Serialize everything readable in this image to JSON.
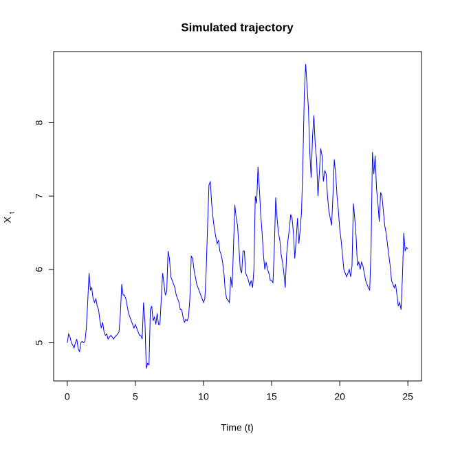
{
  "chart_data": {
    "type": "line",
    "title": "Simulated trajectory",
    "x_label": "Time (t)",
    "y_label": "X",
    "y_label_subscript": "t",
    "xlim": [
      -1,
      26
    ],
    "ylim": [
      4.48,
      8.97
    ],
    "xticks": [
      0,
      5,
      10,
      15,
      20,
      25
    ],
    "yticks": [
      5,
      6,
      7,
      8
    ],
    "grid": false,
    "x": [
      0,
      0.1,
      0.2,
      0.3,
      0.4,
      0.5,
      0.6,
      0.7,
      0.8,
      0.9,
      1,
      1.1,
      1.2,
      1.3,
      1.4,
      1.5,
      1.6,
      1.7,
      1.8,
      1.9,
      2,
      2.1,
      2.2,
      2.3,
      2.4,
      2.5,
      2.6,
      2.7,
      2.8,
      2.9,
      3,
      3.1,
      3.2,
      3.3,
      3.4,
      3.5,
      3.6,
      3.7,
      3.8,
      3.9,
      4,
      4.1,
      4.2,
      4.3,
      4.4,
      4.5,
      4.6,
      4.7,
      4.8,
      4.9,
      5,
      5.1,
      5.2,
      5.3,
      5.4,
      5.5,
      5.6,
      5.7,
      5.8,
      5.9,
      6,
      6.1,
      6.2,
      6.3,
      6.4,
      6.5,
      6.6,
      6.7,
      6.8,
      6.9,
      7,
      7.1,
      7.2,
      7.3,
      7.4,
      7.5,
      7.6,
      7.7,
      7.8,
      7.9,
      8,
      8.1,
      8.2,
      8.3,
      8.4,
      8.5,
      8.6,
      8.7,
      8.8,
      8.9,
      9,
      9.1,
      9.2,
      9.3,
      9.4,
      9.5,
      9.6,
      9.7,
      9.8,
      9.9,
      10,
      10.1,
      10.2,
      10.3,
      10.4,
      10.5,
      10.6,
      10.7,
      10.8,
      10.9,
      11,
      11.1,
      11.2,
      11.3,
      11.4,
      11.5,
      11.6,
      11.7,
      11.8,
      11.9,
      12,
      12.1,
      12.2,
      12.3,
      12.4,
      12.5,
      12.6,
      12.7,
      12.8,
      12.9,
      13,
      13.1,
      13.2,
      13.3,
      13.4,
      13.5,
      13.6,
      13.7,
      13.8,
      13.9,
      14,
      14.1,
      14.2,
      14.3,
      14.4,
      14.5,
      14.6,
      14.7,
      14.8,
      14.9,
      15,
      15.1,
      15.2,
      15.3,
      15.4,
      15.5,
      15.6,
      15.7,
      15.8,
      15.9,
      16,
      16.1,
      16.2,
      16.3,
      16.4,
      16.5,
      16.6,
      16.7,
      16.8,
      16.9,
      17,
      17.1,
      17.2,
      17.3,
      17.4,
      17.5,
      17.6,
      17.7,
      17.8,
      17.9,
      18,
      18.1,
      18.2,
      18.3,
      18.4,
      18.5,
      18.6,
      18.7,
      18.8,
      18.9,
      19,
      19.1,
      19.2,
      19.3,
      19.4,
      19.5,
      19.6,
      19.7,
      19.8,
      19.9,
      20,
      20.1,
      20.2,
      20.3,
      20.4,
      20.5,
      20.6,
      20.7,
      20.8,
      20.9,
      21,
      21.1,
      21.2,
      21.3,
      21.4,
      21.5,
      21.6,
      21.7,
      21.8,
      21.9,
      22,
      22.1,
      22.2,
      22.3,
      22.4,
      22.5,
      22.6,
      22.7,
      22.8,
      22.9,
      23,
      23.1,
      23.2,
      23.3,
      23.4,
      23.5,
      23.6,
      23.7,
      23.8,
      23.9,
      24,
      24.1,
      24.2,
      24.3,
      24.4,
      24.5,
      24.6,
      24.7,
      24.8,
      24.9,
      25
    ],
    "series": [
      {
        "color": "#0000ff",
        "values": [
          5.0,
          5.12,
          5.08,
          5.0,
          4.97,
          4.93,
          5.0,
          5.05,
          4.92,
          4.88,
          5.0,
          5.02,
          5.0,
          5.02,
          5.2,
          5.55,
          5.95,
          5.72,
          5.75,
          5.6,
          5.55,
          5.6,
          5.5,
          5.45,
          5.3,
          5.2,
          5.28,
          5.15,
          5.1,
          5.12,
          5.05,
          5.08,
          5.1,
          5.08,
          5.05,
          5.08,
          5.1,
          5.12,
          5.15,
          5.4,
          5.8,
          5.65,
          5.65,
          5.6,
          5.5,
          5.4,
          5.35,
          5.3,
          5.25,
          5.2,
          5.25,
          5.2,
          5.15,
          5.1,
          5.1,
          5.05,
          5.55,
          5.3,
          4.65,
          4.72,
          4.7,
          5.45,
          5.5,
          5.3,
          5.35,
          5.25,
          5.4,
          5.25,
          5.25,
          5.6,
          5.95,
          5.8,
          5.65,
          5.7,
          6.25,
          6.15,
          5.9,
          5.85,
          5.8,
          5.75,
          5.65,
          5.6,
          5.55,
          5.45,
          5.45,
          5.35,
          5.28,
          5.32,
          5.3,
          5.35,
          5.6,
          6.18,
          6.15,
          6.0,
          5.9,
          5.8,
          5.75,
          5.7,
          5.65,
          5.6,
          5.55,
          5.6,
          6.0,
          6.6,
          7.15,
          7.2,
          6.9,
          6.7,
          6.55,
          6.45,
          6.35,
          6.4,
          6.25,
          6.2,
          6.1,
          5.95,
          5.7,
          5.6,
          5.58,
          5.55,
          5.9,
          5.75,
          6.3,
          6.88,
          6.7,
          6.6,
          6.3,
          6.0,
          5.95,
          6.25,
          6.25,
          5.95,
          5.9,
          5.85,
          5.78,
          5.85,
          5.75,
          6.0,
          7.0,
          6.9,
          7.4,
          7.1,
          6.75,
          6.5,
          6.2,
          6.0,
          6.1,
          6.0,
          5.95,
          5.85,
          5.85,
          5.82,
          6.3,
          6.98,
          6.7,
          6.5,
          6.4,
          6.2,
          6.1,
          5.95,
          5.75,
          6.2,
          6.4,
          6.55,
          6.75,
          6.7,
          6.5,
          6.15,
          6.4,
          6.7,
          6.35,
          6.55,
          6.8,
          7.5,
          8.4,
          8.8,
          8.5,
          8.2,
          7.6,
          7.25,
          7.8,
          8.1,
          7.7,
          7.5,
          7.0,
          7.3,
          7.65,
          7.55,
          7.2,
          7.35,
          7.3,
          7.0,
          6.8,
          6.7,
          6.6,
          7.0,
          7.5,
          7.3,
          7.0,
          6.8,
          6.55,
          6.4,
          6.2,
          6.0,
          5.95,
          5.9,
          5.95,
          6.0,
          5.9,
          6.05,
          6.9,
          6.7,
          6.45,
          6.05,
          6.1,
          6.0,
          6.1,
          6.05,
          5.95,
          5.85,
          5.8,
          5.75,
          5.72,
          6.3,
          7.6,
          7.3,
          7.55,
          7.1,
          6.9,
          6.65,
          7.05,
          7.0,
          6.8,
          6.6,
          6.5,
          6.35,
          6.2,
          6.05,
          5.85,
          5.8,
          5.75,
          5.8,
          5.65,
          5.5,
          5.55,
          5.45,
          5.9,
          6.5,
          6.25,
          6.3,
          6.28
        ]
      }
    ]
  }
}
